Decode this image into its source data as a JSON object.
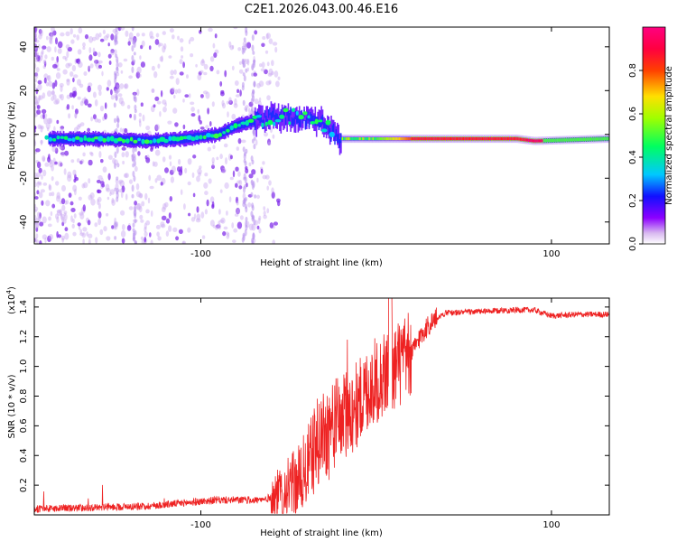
{
  "title": "C2E1.2026.043.00.46.E16",
  "colors": {
    "line": "#ee2222",
    "axis": "#000000"
  },
  "chart_data": [
    {
      "type": "heatmap",
      "xlabel": "Height of straight line (km)",
      "ylabel": "Frequency (Hz)",
      "xlim": [
        -195,
        133
      ],
      "ylim": [
        -50,
        49
      ],
      "xticks": [
        {
          "value": -100,
          "label": "-100"
        },
        {
          "value": 100,
          "label": "100"
        }
      ],
      "yticks": [
        {
          "value": -40,
          "label": "-40"
        },
        {
          "value": -20,
          "label": "-20"
        },
        {
          "value": 0,
          "label": "0"
        },
        {
          "value": 20,
          "label": "20"
        },
        {
          "value": 40,
          "label": "40"
        }
      ],
      "colorbar": {
        "label": "Normalized spectral amplitude",
        "range": [
          0,
          1
        ],
        "ticks": [
          {
            "value": 0.0,
            "label": "0.0"
          },
          {
            "value": 0.2,
            "label": "0.2"
          },
          {
            "value": 0.4,
            "label": "0.4"
          },
          {
            "value": 0.6,
            "label": "0.6"
          },
          {
            "value": 0.8,
            "label": "0.8"
          }
        ]
      },
      "ridge": [
        {
          "x": -185,
          "y": -2
        },
        {
          "x": -160,
          "y": -2
        },
        {
          "x": -130,
          "y": -3
        },
        {
          "x": -110,
          "y": -2
        },
        {
          "x": -90,
          "y": 0
        },
        {
          "x": -80,
          "y": 4
        },
        {
          "x": -70,
          "y": 6
        },
        {
          "x": -62,
          "y": 8
        },
        {
          "x": -45,
          "y": 8
        },
        {
          "x": -30,
          "y": 5
        },
        {
          "x": -22,
          "y": -2
        },
        {
          "x": 0,
          "y": -2
        },
        {
          "x": 40,
          "y": -2
        },
        {
          "x": 80,
          "y": -2
        },
        {
          "x": 90,
          "y": -3
        },
        {
          "x": 130,
          "y": -2
        }
      ]
    },
    {
      "type": "line",
      "xlabel": "Height of straight line (km)",
      "ylabel": "SNR (10 * v/v)",
      "yscale_label": "(x10",
      "yscale_exp": "4",
      "xlim": [
        -195,
        133
      ],
      "ylim": [
        0,
        1.46
      ],
      "xticks": [
        {
          "value": -100,
          "label": "-100"
        },
        {
          "value": 100,
          "label": "100"
        }
      ],
      "yticks": [
        {
          "value": 0.2,
          "label": "0.2"
        },
        {
          "value": 0.4,
          "label": "0.4"
        },
        {
          "value": 0.6,
          "label": "0.6"
        },
        {
          "value": 0.8,
          "label": "0.8"
        },
        {
          "value": 1.0,
          "label": "1.0"
        },
        {
          "value": 1.2,
          "label": "1.2"
        },
        {
          "value": 1.4,
          "label": "1.4"
        }
      ],
      "series": [
        {
          "name": "SNR",
          "points": [
            {
              "x": -195,
              "y": 0.04
            },
            {
              "x": -160,
              "y": 0.05
            },
            {
              "x": -130,
              "y": 0.06
            },
            {
              "x": -110,
              "y": 0.08
            },
            {
              "x": -90,
              "y": 0.1
            },
            {
              "x": -75,
              "y": 0.1
            },
            {
              "x": -65,
              "y": 0.1
            },
            {
              "x": -55,
              "y": 0.14
            },
            {
              "x": -45,
              "y": 0.22
            },
            {
              "x": -40,
              "y": 0.3
            },
            {
              "x": -35,
              "y": 0.45
            },
            {
              "x": -30,
              "y": 0.55
            },
            {
              "x": -25,
              "y": 0.6
            },
            {
              "x": -20,
              "y": 0.65
            },
            {
              "x": -15,
              "y": 0.7
            },
            {
              "x": -10,
              "y": 0.75
            },
            {
              "x": -5,
              "y": 0.85
            },
            {
              "x": 0,
              "y": 0.9
            },
            {
              "x": 5,
              "y": 0.95
            },
            {
              "x": 10,
              "y": 1.0
            },
            {
              "x": 15,
              "y": 1.03
            },
            {
              "x": 20,
              "y": 1.08
            },
            {
              "x": 25,
              "y": 1.2
            },
            {
              "x": 30,
              "y": 1.28
            },
            {
              "x": 35,
              "y": 1.33
            },
            {
              "x": 40,
              "y": 1.36
            },
            {
              "x": 60,
              "y": 1.37
            },
            {
              "x": 80,
              "y": 1.38
            },
            {
              "x": 90,
              "y": 1.38
            },
            {
              "x": 100,
              "y": 1.34
            },
            {
              "x": 115,
              "y": 1.35
            },
            {
              "x": 133,
              "y": 1.35
            }
          ]
        }
      ]
    }
  ]
}
